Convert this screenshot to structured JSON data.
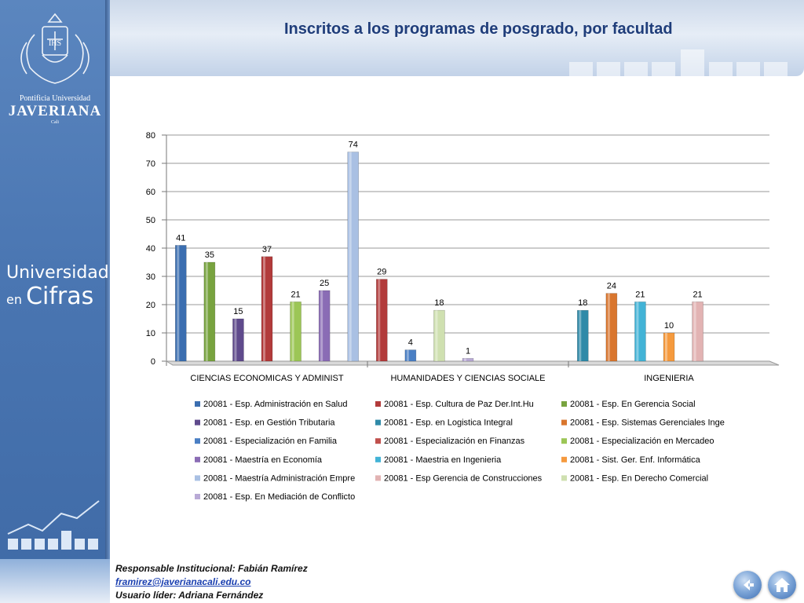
{
  "title": "Inscritos a los programas de posgrado, por facultad",
  "university": {
    "line1": "Pontificia Universidad",
    "line2": "JAVERIANA",
    "line3": "Cali",
    "cifras_a": "Universidad",
    "cifras_b": "en",
    "cifras_c": "Cifras"
  },
  "footer": {
    "responsable": "Responsable Institucional: Fabián Ramírez",
    "email": "framirez@javerianacali.edu.co",
    "usuario": "Usuario líder: Adriana Fernández"
  },
  "chart_data": {
    "type": "bar",
    "ylim": [
      0,
      80
    ],
    "yticks": [
      0,
      10,
      20,
      30,
      40,
      50,
      60,
      70,
      80
    ],
    "grid": true,
    "legend_position": "bottom",
    "categories": [
      "CIENCIAS ECONOMICAS Y ADMINIST",
      "HUMANIDADES Y CIENCIAS SOCIALE",
      "INGENIERIA"
    ],
    "series": [
      {
        "name": "20081 - Esp. Administración en Salud",
        "color": "#3b6eb0",
        "category": 0,
        "value": 41
      },
      {
        "name": "20081 - Esp. En  Gerencia Social",
        "color": "#78a33f",
        "category": 0,
        "value": 35
      },
      {
        "name": "20081 - Esp. en Gestión Tributaria",
        "color": "#5f4a8c",
        "category": 0,
        "value": 15
      },
      {
        "name": "20081 - Esp. Cultura de Paz Der.Int.Hu",
        "color": "#b23b3b",
        "category": 0,
        "value": 37
      },
      {
        "name": "20081 - Especialización en Mercadeo",
        "color": "#9cc656",
        "category": 0,
        "value": 21
      },
      {
        "name": "20081 - Maestría en Economía",
        "color": "#8a6cb5",
        "category": 0,
        "value": 25
      },
      {
        "name": "20081 - Maestría  Administración Empre",
        "color": "#a9c0e3",
        "category": 0,
        "value": 74
      },
      {
        "name": "20081 - Especialización en Finanzas",
        "color": "#b23b3b",
        "category": 1,
        "value": 29
      },
      {
        "name": "20081 - Especialización en Familia",
        "color": "#4a7fc4",
        "category": 1,
        "value": 4
      },
      {
        "name": "20081 - Esp. En Derecho Comercial",
        "color": "#cfe0b0",
        "category": 1,
        "value": 18
      },
      {
        "name": "20081 - Esp. En Mediación de Conflicto",
        "color": "#b9aad6",
        "category": 1,
        "value": 1
      },
      {
        "name": "20081 - Esp. en Logistica Integral",
        "color": "#2f8aa8",
        "category": 2,
        "value": 18
      },
      {
        "name": "20081 - Esp. Sistemas Gerenciales Inge",
        "color": "#d9762e",
        "category": 2,
        "value": 24
      },
      {
        "name": "20081 - Maestria en Ingenieria",
        "color": "#42b3d6",
        "category": 2,
        "value": 21
      },
      {
        "name": "20081 - Sist. Ger.  Enf. Informática",
        "color": "#f59a3e",
        "category": 2,
        "value": 10
      },
      {
        "name": "20081 - Esp Gerencia de Construcciones",
        "color": "#e2b3b3",
        "category": 2,
        "value": 21
      }
    ],
    "legend": [
      {
        "name": "20081 - Esp. Administración en Salud",
        "color": "#3b6eb0"
      },
      {
        "name": "20081 - Esp. Cultura de Paz Der.Int.Hu",
        "color": "#b23b3b"
      },
      {
        "name": "20081 - Esp. En  Gerencia Social",
        "color": "#78a33f"
      },
      {
        "name": "20081 - Esp. en Gestión Tributaria",
        "color": "#5f4a8c"
      },
      {
        "name": "20081 - Esp. en Logistica Integral",
        "color": "#2f8aa8"
      },
      {
        "name": "20081 - Esp. Sistemas Gerenciales Inge",
        "color": "#d9762e"
      },
      {
        "name": "20081 - Especialización en Familia",
        "color": "#4a7fc4"
      },
      {
        "name": "20081 - Especialización en Finanzas",
        "color": "#c0504d"
      },
      {
        "name": "20081 - Especialización en Mercadeo",
        "color": "#9cc656"
      },
      {
        "name": "20081 - Maestría en Economía",
        "color": "#8a6cb5"
      },
      {
        "name": "20081 - Maestria en Ingenieria",
        "color": "#42b3d6"
      },
      {
        "name": "20081 - Sist. Ger.  Enf. Informática",
        "color": "#f59a3e"
      },
      {
        "name": "20081 - Maestría  Administración Empre",
        "color": "#a9c0e3"
      },
      {
        "name": "20081 - Esp Gerencia de Construcciones",
        "color": "#e2b3b3"
      },
      {
        "name": "20081 - Esp. En Derecho Comercial",
        "color": "#cfe0b0"
      },
      {
        "name": "20081 - Esp. En Mediación de Conflicto",
        "color": "#b9aad6"
      }
    ]
  }
}
